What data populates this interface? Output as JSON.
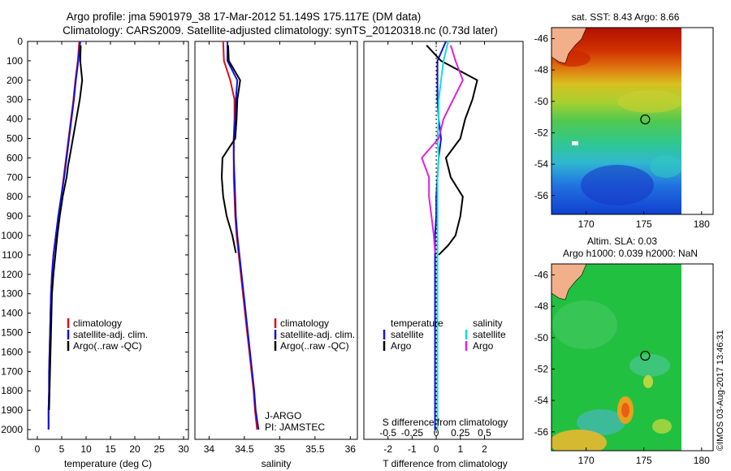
{
  "title": {
    "line1": "Argo profile: jma 5901979_38 17-Mar-2012 51.149S 175.117E (DM data)",
    "line2": "Climatology: CARS2009. Satellite-adjusted climatology: synTS_20120318.nc (0.73d later)"
  },
  "colors": {
    "climatology": "#dd1111",
    "satellite": "#1010dd",
    "argo": "#000000",
    "salinity_satellite": "#11dddd",
    "salinity_argo": "#dd22dd"
  },
  "chart_data": [
    {
      "type": "line",
      "panel": "temperature",
      "xlabel": "temperature (deg C)",
      "xlim": [
        -2,
        31
      ],
      "xticks": [
        0,
        5,
        10,
        15,
        20,
        25,
        30
      ],
      "ylim": [
        0,
        2050
      ],
      "yticks": [
        0,
        100,
        200,
        300,
        400,
        500,
        600,
        700,
        800,
        900,
        1000,
        1100,
        1200,
        1300,
        1400,
        1500,
        1600,
        1700,
        1800,
        1900,
        2000
      ],
      "y_reversed": true,
      "legend": [
        "climatology",
        "satellite-adj. clim.",
        "Argo(..raw -QC)"
      ],
      "series": [
        {
          "name": "climatology",
          "key": "climatology",
          "x": [
            8.6,
            8.3,
            7.8,
            7.4,
            6.9,
            6.4,
            5.9,
            5.4,
            4.9,
            4.3,
            3.8,
            3.3,
            3.0,
            2.8,
            2.7,
            2.6,
            2.5,
            2.4,
            2.4,
            2.3,
            2.3
          ],
          "y": [
            0,
            100,
            200,
            300,
            400,
            500,
            600,
            700,
            800,
            900,
            1000,
            1100,
            1200,
            1300,
            1400,
            1500,
            1600,
            1700,
            1800,
            1900,
            2000
          ]
        },
        {
          "name": "satellite-adj. clim.",
          "key": "satellite",
          "x": [
            8.8,
            8.4,
            7.9,
            7.5,
            7.0,
            6.5,
            6.0,
            5.5,
            4.9,
            4.3,
            3.8,
            3.3,
            3.0,
            2.8,
            2.7,
            2.6,
            2.5,
            2.4,
            2.4,
            2.3,
            2.3
          ],
          "y": [
            0,
            100,
            200,
            300,
            400,
            500,
            600,
            700,
            800,
            900,
            1000,
            1100,
            1200,
            1300,
            1400,
            1500,
            1600,
            1700,
            1800,
            1900,
            2000
          ]
        },
        {
          "name": "Argo(..raw -QC)",
          "key": "argo",
          "x": [
            8.9,
            8.8,
            9.2,
            8.7,
            8.0,
            7.3,
            6.6,
            6.3,
            6.0,
            5.2,
            4.6,
            4.1,
            3.7,
            3.3,
            3.0,
            2.9,
            2.8,
            2.7,
            2.6,
            2.5,
            2.4
          ],
          "y": [
            20,
            100,
            200,
            300,
            400,
            500,
            600,
            640,
            700,
            800,
            900,
            1000,
            1100,
            1200,
            1300,
            1400,
            1500,
            1600,
            1700,
            1800,
            1900
          ]
        }
      ]
    },
    {
      "type": "line",
      "panel": "salinity",
      "xlabel": "salinity",
      "xlim": [
        33.8,
        36.1
      ],
      "xticks": [
        34,
        34.5,
        35,
        35.5,
        36
      ],
      "ylim": [
        0,
        2050
      ],
      "y_reversed": true,
      "legend": [
        "climatology",
        "satellite-adj. clim.",
        "Argo(..raw -QC)"
      ],
      "annotation": [
        "J-ARGO",
        "PI: JAMSTEC"
      ],
      "series": [
        {
          "name": "climatology",
          "key": "climatology",
          "x": [
            34.2,
            34.21,
            34.3,
            34.36,
            34.36,
            34.35,
            34.35,
            34.35,
            34.36,
            34.37,
            34.39,
            34.42,
            34.45,
            34.48,
            34.51,
            34.54,
            34.57,
            34.6,
            34.63,
            34.65,
            34.68
          ],
          "y": [
            0,
            100,
            200,
            300,
            400,
            500,
            600,
            700,
            800,
            900,
            1000,
            1100,
            1200,
            1300,
            1400,
            1500,
            1600,
            1700,
            1800,
            1900,
            2000
          ]
        },
        {
          "name": "satellite-adj. clim.",
          "key": "satellite",
          "x": [
            34.26,
            34.26,
            34.4,
            34.38,
            34.37,
            34.35,
            34.35,
            34.36,
            34.37,
            34.38,
            34.4,
            34.43,
            34.46,
            34.49,
            34.52,
            34.55,
            34.58,
            34.61,
            34.64,
            34.66,
            34.7
          ],
          "y": [
            0,
            100,
            200,
            300,
            400,
            500,
            600,
            700,
            800,
            900,
            1000,
            1100,
            1200,
            1300,
            1400,
            1500,
            1600,
            1700,
            1800,
            1900,
            2000
          ]
        },
        {
          "name": "Argo(..raw -QC)",
          "key": "argo",
          "x": [
            34.27,
            34.28,
            34.44,
            34.4,
            34.39,
            34.37,
            34.19,
            34.18,
            34.2,
            34.25,
            34.33,
            34.38
          ],
          "y": [
            20,
            100,
            200,
            300,
            400,
            500,
            600,
            700,
            800,
            900,
            1000,
            1090
          ]
        }
      ]
    },
    {
      "type": "line",
      "panel": "difference",
      "xlabel": "T difference from climatology",
      "xlabel2": "S difference from climatology",
      "xlim": [
        -3,
        3.6
      ],
      "xticks": [
        -2,
        -1,
        0,
        1,
        2
      ],
      "xticks_salinity": [
        -0.5,
        -0.25,
        0,
        0.25,
        0.5
      ],
      "ylim": [
        0,
        2050
      ],
      "y_reversed": true,
      "legend_left_title": "temperature",
      "legend_right_title": "salinity",
      "legend_left": [
        "satellite",
        "Argo"
      ],
      "legend_right": [
        "satellite",
        "Argo"
      ],
      "series": [
        {
          "name": "satellite",
          "group": "temperature",
          "key": "satellite",
          "x": [
            0.4,
            0.05,
            0.05,
            0.05,
            0.1,
            0.2,
            0.1,
            0.05,
            0.0,
            0.0,
            -0.05,
            -0.05,
            -0.05,
            -0.05,
            -0.05,
            -0.05,
            -0.05,
            -0.05,
            -0.05,
            -0.05,
            -0.05
          ],
          "y": [
            0,
            100,
            200,
            300,
            400,
            500,
            600,
            700,
            800,
            900,
            1000,
            1100,
            1200,
            1300,
            1400,
            1500,
            1600,
            1700,
            1800,
            1900,
            2000
          ]
        },
        {
          "name": "Argo",
          "group": "temperature",
          "key": "argo",
          "x": [
            -0.4,
            0.2,
            1.7,
            1.5,
            1.2,
            1.0,
            0.4,
            0.6,
            1.1,
            1.0,
            0.8,
            0.5,
            0.1
          ],
          "y": [
            20,
            100,
            200,
            300,
            400,
            500,
            600,
            700,
            800,
            900,
            1000,
            1050,
            1100
          ]
        },
        {
          "name": "satellite",
          "group": "salinity",
          "key": "salinity_satellite",
          "x": [
            0.5,
            0.3,
            0.2,
            0.1,
            0.1,
            0.05,
            0.1,
            0.05,
            0.05,
            0.05,
            0.05,
            0.05,
            0.05,
            0.05,
            0.05,
            0.05,
            0.05,
            0.05,
            0.05,
            0.05,
            0.05
          ],
          "y": [
            0,
            100,
            200,
            300,
            400,
            500,
            600,
            700,
            800,
            900,
            1000,
            1100,
            1200,
            1300,
            1400,
            1500,
            1600,
            1700,
            1800,
            1900,
            2000
          ]
        },
        {
          "name": "Argo",
          "group": "salinity",
          "key": "salinity_argo",
          "x": [
            0.6,
            0.8,
            1.1,
            0.7,
            0.3,
            0.1,
            -0.6,
            -0.3,
            -0.3,
            -0.2,
            -0.1,
            -0.05
          ],
          "y": [
            20,
            100,
            200,
            300,
            400,
            500,
            600,
            700,
            800,
            900,
            1000,
            1090
          ]
        }
      ]
    },
    {
      "type": "heatmap",
      "panel": "sst-map",
      "title": "sat. SST: 8.43 Argo: 8.66",
      "xlim": [
        167,
        181
      ],
      "ylim": [
        -57.2,
        -45.3
      ],
      "xticks": [
        170,
        175,
        180
      ],
      "yticks": [
        -46,
        -48,
        -50,
        -52,
        -54,
        -56
      ],
      "marker": {
        "lon": 175.117,
        "lat": -51.149
      }
    },
    {
      "type": "heatmap",
      "panel": "sla-map",
      "title": "Altim. SLA: 0.03",
      "subtitle": "Argo h1000: 0.039 h2000: NaN",
      "xlim": [
        167,
        181
      ],
      "ylim": [
        -57.2,
        -45.3
      ],
      "xticks": [
        170,
        175,
        180
      ],
      "yticks": [
        -46,
        -48,
        -50,
        -52,
        -54,
        -56
      ],
      "marker": {
        "lon": 175.117,
        "lat": -51.149
      }
    }
  ],
  "footer": {
    "stamp": "©IMOS 03-Aug-2017 13:46:31"
  }
}
